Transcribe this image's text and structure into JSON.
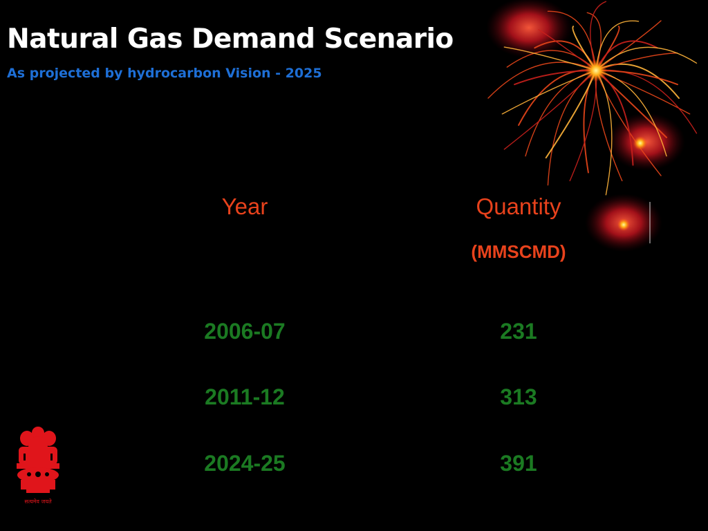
{
  "slide": {
    "title": "Natural Gas Demand Scenario",
    "subtitle": "As projected by hydrocarbon Vision - 2025"
  },
  "table": {
    "headers": {
      "year": "Year",
      "quantity": "Quantity",
      "unit": "(MMSCMD)"
    },
    "rows": [
      {
        "year": "2006-07",
        "quantity": "231"
      },
      {
        "year": "2011-12",
        "quantity": "313"
      },
      {
        "year": "2024-25",
        "quantity": "391"
      }
    ]
  },
  "colors": {
    "background": "#000000",
    "title": "#ffffff",
    "subtitle": "#1e6fd6",
    "header": "#e8421c",
    "values": "#1b7a22",
    "emblem": "#e0151b"
  },
  "decorations": {
    "fireworks": "fireworks-graphic",
    "emblem": "national-emblem-icon",
    "emblem_caption": "सत्यमेव जयते"
  }
}
